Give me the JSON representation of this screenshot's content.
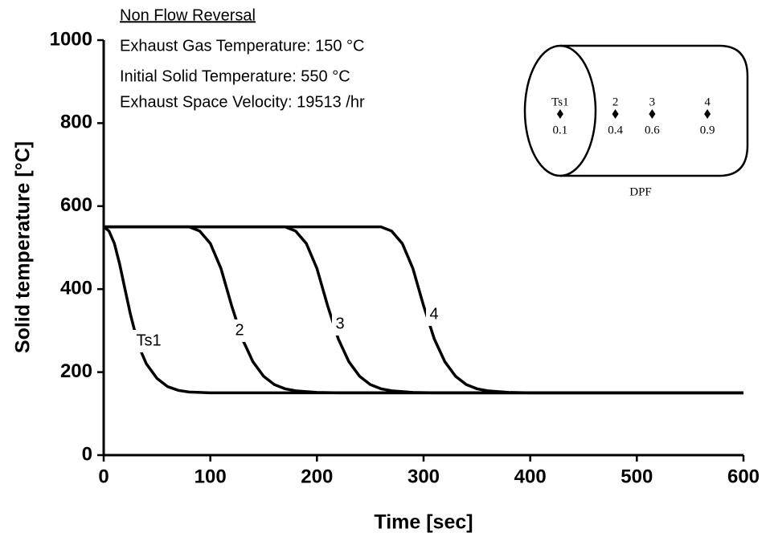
{
  "chart_data": {
    "type": "line",
    "annotations": [
      "Non Flow Reversal",
      "Exhaust Gas Temperature: 150 °C",
      "Initial Solid Temperature: 550 °C",
      "Exhaust Space Velocity: 19513 /hr"
    ],
    "xlabel": "Time [sec]",
    "ylabel": "Solid temperature [°C]",
    "xlim": [
      0,
      600
    ],
    "xticks": [
      0,
      100,
      200,
      300,
      400,
      500,
      600
    ],
    "ylim": [
      0,
      1000
    ],
    "yticks": [
      0,
      200,
      400,
      600,
      800,
      1000
    ],
    "color": "#000000",
    "series": [
      {
        "name": "Ts1",
        "x": [
          0,
          5,
          10,
          15,
          20,
          25,
          30,
          35,
          40,
          50,
          60,
          70,
          80,
          100,
          600
        ],
        "values": [
          550,
          540,
          510,
          460,
          400,
          340,
          290,
          250,
          220,
          185,
          165,
          156,
          152,
          150,
          150
        ]
      },
      {
        "name": "2",
        "x": [
          0,
          80,
          90,
          100,
          110,
          120,
          130,
          140,
          150,
          160,
          170,
          180,
          200,
          220,
          600
        ],
        "values": [
          550,
          550,
          540,
          510,
          450,
          360,
          280,
          225,
          190,
          170,
          160,
          155,
          151,
          150,
          150
        ]
      },
      {
        "name": "3",
        "x": [
          0,
          170,
          180,
          190,
          200,
          210,
          220,
          230,
          240,
          250,
          260,
          270,
          290,
          310,
          600
        ],
        "values": [
          550,
          550,
          540,
          510,
          450,
          360,
          280,
          225,
          190,
          170,
          160,
          155,
          151,
          150,
          150
        ]
      },
      {
        "name": "4",
        "x": [
          0,
          260,
          270,
          280,
          290,
          300,
          310,
          320,
          330,
          340,
          350,
          360,
          380,
          400,
          600
        ],
        "values": [
          550,
          550,
          540,
          510,
          450,
          360,
          280,
          225,
          190,
          170,
          160,
          155,
          151,
          150,
          150
        ]
      }
    ],
    "inset": {
      "labels": [
        "Ts1",
        "2",
        "3",
        "4"
      ],
      "positions": [
        0.1,
        0.4,
        0.6,
        0.9
      ],
      "caption": "DPF"
    }
  }
}
